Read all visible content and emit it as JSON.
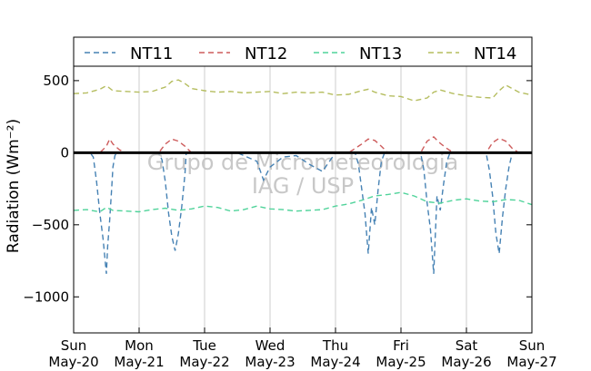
{
  "chart_data": {
    "type": "line",
    "ylabel": "Radiation (Wm⁻²)",
    "ylim": [
      -1250,
      600
    ],
    "yticks": [
      500,
      0,
      -500,
      -1000
    ],
    "xlim": [
      0,
      7
    ],
    "xticks": [
      {
        "day": "Sun",
        "date": "May-20"
      },
      {
        "day": "Mon",
        "date": "May-21"
      },
      {
        "day": "Tue",
        "date": "May-22"
      },
      {
        "day": "Wed",
        "date": "May-23"
      },
      {
        "day": "Thu",
        "date": "May-24"
      },
      {
        "day": "Fri",
        "date": "May-25"
      },
      {
        "day": "Sat",
        "date": "May-26"
      },
      {
        "day": "Sun",
        "date": "May-27"
      }
    ],
    "grid": "vertical",
    "legend_position": "top",
    "watermark": [
      "Grupo de Micrometeorologia",
      "IAG / USP"
    ],
    "zero_line": true,
    "series": [
      {
        "name": "NT11",
        "color": "#4682b4",
        "x": [
          0,
          0.25,
          0.3,
          0.35,
          0.4,
          0.45,
          0.5,
          0.52,
          0.55,
          0.58,
          0.6,
          0.63,
          0.66,
          0.7,
          1.0,
          1.3,
          1.35,
          1.4,
          1.45,
          1.5,
          1.55,
          1.6,
          1.65,
          1.7,
          1.72,
          2.0,
          2.3,
          2.5,
          2.8,
          2.9,
          3.0,
          3.2,
          3.4,
          3.6,
          3.8,
          4.0,
          4.3,
          4.35,
          4.4,
          4.45,
          4.5,
          4.55,
          4.6,
          4.65,
          4.7,
          4.75,
          5.0,
          5.3,
          5.35,
          5.4,
          5.45,
          5.5,
          5.55,
          5.6,
          5.65,
          5.7,
          5.75,
          6.0,
          6.3,
          6.35,
          6.4,
          6.45,
          6.5,
          6.55,
          6.6,
          6.65,
          6.7,
          7.0
        ],
        "y": [
          0,
          0,
          -30,
          -200,
          -420,
          -600,
          -840,
          -650,
          -470,
          -250,
          -100,
          -20,
          0,
          0,
          0,
          0,
          -50,
          -200,
          -420,
          -580,
          -680,
          -560,
          -380,
          -150,
          0,
          0,
          0,
          0,
          -60,
          -190,
          -100,
          -30,
          -20,
          -80,
          -130,
          0,
          0,
          -80,
          -250,
          -420,
          -700,
          -380,
          -500,
          -260,
          -60,
          0,
          0,
          0,
          -120,
          -350,
          -530,
          -840,
          -300,
          -400,
          -220,
          -60,
          0,
          0,
          0,
          -120,
          -300,
          -560,
          -700,
          -450,
          -250,
          -100,
          0,
          0
        ]
      },
      {
        "name": "NT12",
        "color": "#cd5c5c",
        "x": [
          0,
          0.4,
          0.5,
          0.55,
          0.6,
          0.7,
          0.8,
          1.0,
          1.3,
          1.4,
          1.5,
          1.6,
          1.7,
          1.8,
          2.0,
          4.2,
          4.4,
          4.5,
          4.6,
          4.7,
          4.8,
          5.0,
          5.3,
          5.4,
          5.5,
          5.6,
          5.7,
          5.8,
          6.0,
          6.3,
          6.4,
          6.5,
          6.6,
          6.7,
          6.8,
          7.0
        ],
        "y": [
          0,
          0,
          45,
          95,
          60,
          20,
          0,
          0,
          0,
          60,
          95,
          80,
          45,
          0,
          0,
          0,
          60,
          95,
          85,
          45,
          0,
          0,
          0,
          80,
          110,
          65,
          30,
          0,
          0,
          0,
          70,
          100,
          80,
          30,
          0,
          0
        ]
      },
      {
        "name": "NT13",
        "color": "#4fd39a",
        "x": [
          0,
          0.2,
          0.4,
          0.5,
          0.6,
          0.8,
          1.0,
          1.2,
          1.4,
          1.6,
          1.8,
          2.0,
          2.2,
          2.4,
          2.6,
          2.8,
          3.0,
          3.2,
          3.4,
          3.6,
          3.8,
          4.0,
          4.2,
          4.4,
          4.6,
          4.8,
          5.0,
          5.2,
          5.4,
          5.6,
          5.8,
          6.0,
          6.2,
          6.4,
          6.6,
          6.8,
          7.0
        ],
        "y": [
          -400,
          -395,
          -410,
          -380,
          -400,
          -405,
          -410,
          -395,
          -385,
          -400,
          -390,
          -370,
          -380,
          -405,
          -395,
          -370,
          -390,
          -395,
          -405,
          -400,
          -395,
          -370,
          -355,
          -330,
          -300,
          -290,
          -275,
          -300,
          -340,
          -350,
          -330,
          -320,
          -335,
          -340,
          -325,
          -330,
          -360
        ]
      },
      {
        "name": "NT14",
        "color": "#b5bd5f",
        "x": [
          0,
          0.2,
          0.4,
          0.5,
          0.6,
          0.8,
          1.0,
          1.2,
          1.4,
          1.5,
          1.6,
          1.7,
          1.8,
          2.0,
          2.2,
          2.4,
          2.6,
          2.8,
          3.0,
          3.2,
          3.4,
          3.6,
          3.8,
          4.0,
          4.2,
          4.4,
          4.5,
          4.6,
          4.8,
          5.0,
          5.2,
          5.4,
          5.5,
          5.6,
          5.8,
          6.0,
          6.2,
          6.4,
          6.5,
          6.6,
          6.8,
          7.0
        ],
        "y": [
          410,
          415,
          440,
          465,
          430,
          425,
          420,
          425,
          455,
          495,
          505,
          480,
          445,
          430,
          420,
          425,
          415,
          420,
          425,
          410,
          420,
          415,
          420,
          400,
          405,
          430,
          440,
          420,
          395,
          390,
          360,
          380,
          420,
          435,
          410,
          395,
          385,
          380,
          430,
          470,
          420,
          400
        ]
      }
    ]
  }
}
